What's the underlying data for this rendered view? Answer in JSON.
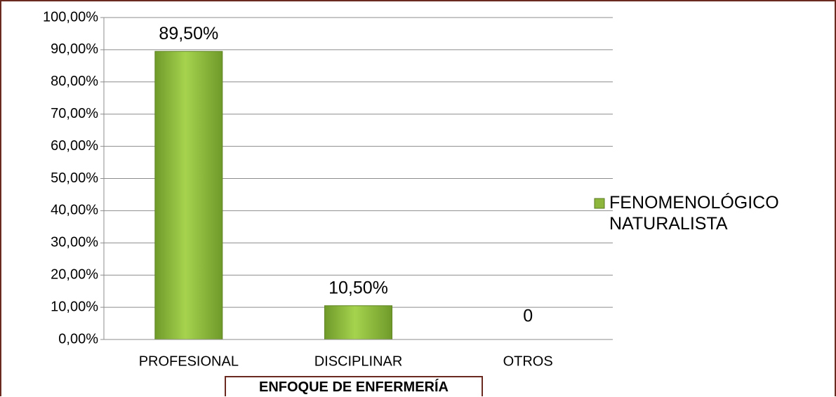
{
  "chart_data": {
    "type": "bar",
    "categories": [
      "PROFESIONAL",
      "DISCIPLINAR",
      "OTROS"
    ],
    "series": [
      {
        "name": "FENOMENOLÓGICO NATURALISTA",
        "color": "#8cb63c",
        "values": [
          89.5,
          10.5,
          0
        ],
        "value_labels": [
          "89,50%",
          "10,50%",
          "0"
        ]
      }
    ],
    "x_label": "ENFOQUE DE ENFERMERÍA",
    "ylim": [
      0,
      100
    ],
    "yticks": [
      {
        "value": 0,
        "label": "0,00%"
      },
      {
        "value": 10,
        "label": "10,00%"
      },
      {
        "value": 20,
        "label": "20,00%"
      },
      {
        "value": 30,
        "label": "30,00%"
      },
      {
        "value": 40,
        "label": "40,00%"
      },
      {
        "value": 50,
        "label": "50,00%"
      },
      {
        "value": 60,
        "label": "60,00%"
      },
      {
        "value": 70,
        "label": "70,00%"
      },
      {
        "value": 80,
        "label": "80,00%"
      },
      {
        "value": 90,
        "label": "90,00%"
      },
      {
        "value": 100,
        "label": "100,00%"
      }
    ],
    "grid": true,
    "legend": "right"
  }
}
